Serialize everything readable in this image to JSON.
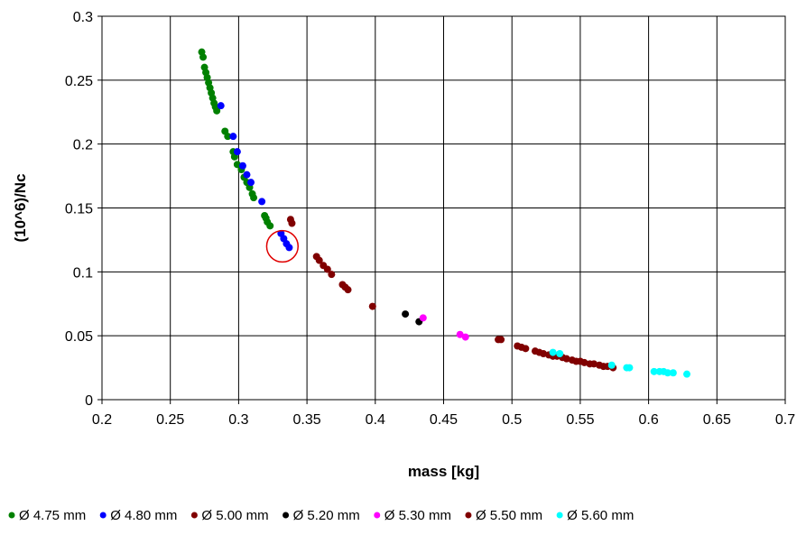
{
  "chart_data": {
    "type": "scatter",
    "title": "",
    "xlabel": "mass [kg]",
    "ylabel": "(10^6)/Nc",
    "xlim": [
      0.2,
      0.7
    ],
    "ylim": [
      0,
      0.3
    ],
    "xticks": [
      0.2,
      0.25,
      0.3,
      0.35,
      0.4,
      0.45,
      0.5,
      0.55,
      0.6,
      0.65,
      0.7
    ],
    "yticks": [
      0,
      0.05,
      0.1,
      0.15,
      0.2,
      0.25,
      0.3
    ],
    "xtick_labels": [
      "0.2",
      "0.25",
      "0.3",
      "0.35",
      "0.4",
      "0.45",
      "0.5",
      "0.55",
      "0.6",
      "0.65",
      "0.7"
    ],
    "ytick_labels": [
      "0",
      "0.05",
      "0.1",
      "0.15",
      "0.2",
      "0.25",
      "0.3"
    ],
    "grid": true,
    "legend_position": "bottom",
    "annotation": {
      "type": "circle",
      "center": [
        0.332,
        0.12
      ],
      "radius_x": 0.0115,
      "color": "#e00000"
    },
    "series": [
      {
        "name": "Ø 4.75 mm",
        "color": "#008000",
        "points": [
          [
            0.273,
            0.272
          ],
          [
            0.274,
            0.268
          ],
          [
            0.275,
            0.26
          ],
          [
            0.276,
            0.256
          ],
          [
            0.277,
            0.252
          ],
          [
            0.278,
            0.248
          ],
          [
            0.279,
            0.244
          ],
          [
            0.28,
            0.24
          ],
          [
            0.281,
            0.236
          ],
          [
            0.282,
            0.232
          ],
          [
            0.283,
            0.229
          ],
          [
            0.284,
            0.226
          ],
          [
            0.29,
            0.21
          ],
          [
            0.292,
            0.206
          ],
          [
            0.296,
            0.194
          ],
          [
            0.297,
            0.19
          ],
          [
            0.299,
            0.184
          ],
          [
            0.302,
            0.18
          ],
          [
            0.304,
            0.174
          ],
          [
            0.306,
            0.17
          ],
          [
            0.308,
            0.166
          ],
          [
            0.31,
            0.161
          ],
          [
            0.311,
            0.158
          ],
          [
            0.319,
            0.144
          ],
          [
            0.32,
            0.142
          ],
          [
            0.321,
            0.139
          ],
          [
            0.323,
            0.136
          ]
        ]
      },
      {
        "name": "Ø 4.80 mm",
        "color": "#0000ff",
        "points": [
          [
            0.287,
            0.23
          ],
          [
            0.296,
            0.206
          ],
          [
            0.299,
            0.194
          ],
          [
            0.303,
            0.183
          ],
          [
            0.306,
            0.176
          ],
          [
            0.309,
            0.17
          ],
          [
            0.317,
            0.155
          ],
          [
            0.331,
            0.13
          ],
          [
            0.333,
            0.126
          ],
          [
            0.335,
            0.122
          ],
          [
            0.337,
            0.119
          ]
        ]
      },
      {
        "name": "Ø 5.00 mm",
        "color": "#800000",
        "points": [
          [
            0.338,
            0.141
          ],
          [
            0.339,
            0.138
          ],
          [
            0.357,
            0.112
          ],
          [
            0.359,
            0.109
          ],
          [
            0.362,
            0.105
          ],
          [
            0.365,
            0.102
          ],
          [
            0.368,
            0.098
          ],
          [
            0.376,
            0.09
          ],
          [
            0.378,
            0.088
          ],
          [
            0.38,
            0.086
          ],
          [
            0.398,
            0.073
          ]
        ]
      },
      {
        "name": "Ø 5.20 mm",
        "color": "#000000",
        "points": [
          [
            0.422,
            0.067
          ],
          [
            0.432,
            0.061
          ]
        ]
      },
      {
        "name": "Ø 5.30 mm",
        "color": "#ff00ff",
        "points": [
          [
            0.435,
            0.064
          ],
          [
            0.462,
            0.051
          ],
          [
            0.466,
            0.049
          ]
        ]
      },
      {
        "name": "Ø 5.50 mm",
        "color": "#800000",
        "points": [
          [
            0.49,
            0.047
          ],
          [
            0.492,
            0.047
          ],
          [
            0.504,
            0.042
          ],
          [
            0.507,
            0.041
          ],
          [
            0.51,
            0.04
          ],
          [
            0.517,
            0.038
          ],
          [
            0.52,
            0.037
          ],
          [
            0.523,
            0.036
          ],
          [
            0.527,
            0.035
          ],
          [
            0.53,
            0.034
          ],
          [
            0.533,
            0.034
          ],
          [
            0.537,
            0.033
          ],
          [
            0.54,
            0.032
          ],
          [
            0.544,
            0.031
          ],
          [
            0.547,
            0.03
          ],
          [
            0.55,
            0.03
          ],
          [
            0.553,
            0.029
          ],
          [
            0.557,
            0.028
          ],
          [
            0.56,
            0.028
          ],
          [
            0.564,
            0.027
          ],
          [
            0.567,
            0.026
          ],
          [
            0.57,
            0.026
          ],
          [
            0.574,
            0.025
          ]
        ]
      },
      {
        "name": "Ø 5.60 mm",
        "color": "#00ffff",
        "points": [
          [
            0.53,
            0.037
          ],
          [
            0.535,
            0.036
          ],
          [
            0.573,
            0.027
          ],
          [
            0.584,
            0.025
          ],
          [
            0.586,
            0.025
          ],
          [
            0.604,
            0.022
          ],
          [
            0.608,
            0.022
          ],
          [
            0.611,
            0.022
          ],
          [
            0.614,
            0.021
          ],
          [
            0.618,
            0.021
          ],
          [
            0.628,
            0.02
          ]
        ]
      }
    ]
  }
}
